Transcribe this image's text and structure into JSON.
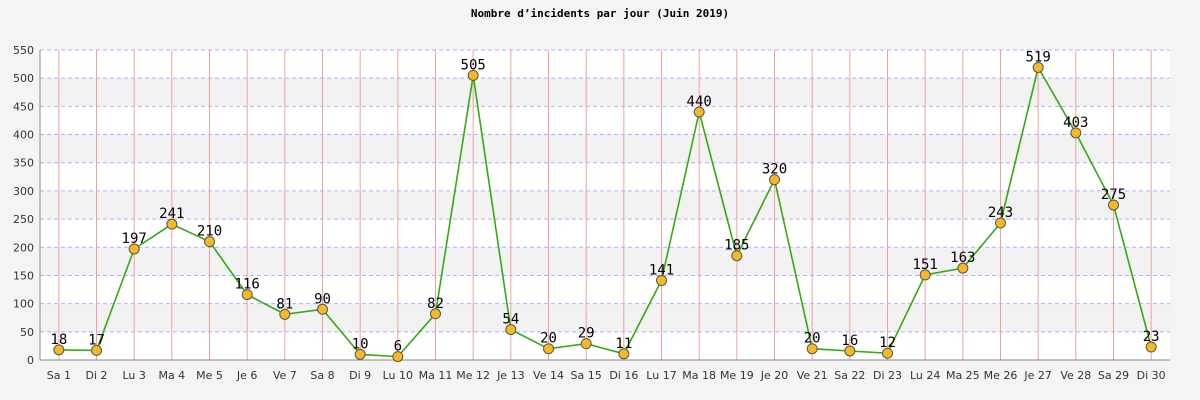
{
  "chart_data": {
    "type": "line",
    "title": "Nombre d’incidents par jour (Juin 2019)",
    "categories": [
      "Sa 1",
      "Di 2",
      "Lu 3",
      "Ma 4",
      "Me 5",
      "Je 6",
      "Ve 7",
      "Sa 8",
      "Di 9",
      "Lu 10",
      "Ma 11",
      "Me 12",
      "Je 13",
      "Ve 14",
      "Sa 15",
      "Di 16",
      "Lu 17",
      "Ma 18",
      "Me 19",
      "Je 20",
      "Ve 21",
      "Sa 22",
      "Di 23",
      "Lu 24",
      "Ma 25",
      "Me 26",
      "Je 27",
      "Ve 28",
      "Sa 29",
      "Di 30"
    ],
    "series": [
      {
        "values": [
          18,
          17,
          197,
          241,
          210,
          116,
          81,
          90,
          10,
          6,
          82,
          505,
          54,
          20,
          29,
          11,
          141,
          440,
          185,
          320,
          20,
          16,
          12,
          151,
          163,
          243,
          519,
          403,
          275,
          23
        ]
      }
    ],
    "ylim": [
      0,
      550
    ],
    "yticks": [
      0,
      50,
      100,
      150,
      200,
      250,
      300,
      350,
      400,
      450,
      500,
      550
    ],
    "grid": true,
    "colors": {
      "line": "#33aa11",
      "marker_fill": "#f5b923",
      "marker_stroke": "#555555",
      "vgrid": "#f0a0a0",
      "hgrid": "#b0b0ff",
      "band": "#f2f2f2",
      "plot_bg": "#ffffff"
    }
  }
}
